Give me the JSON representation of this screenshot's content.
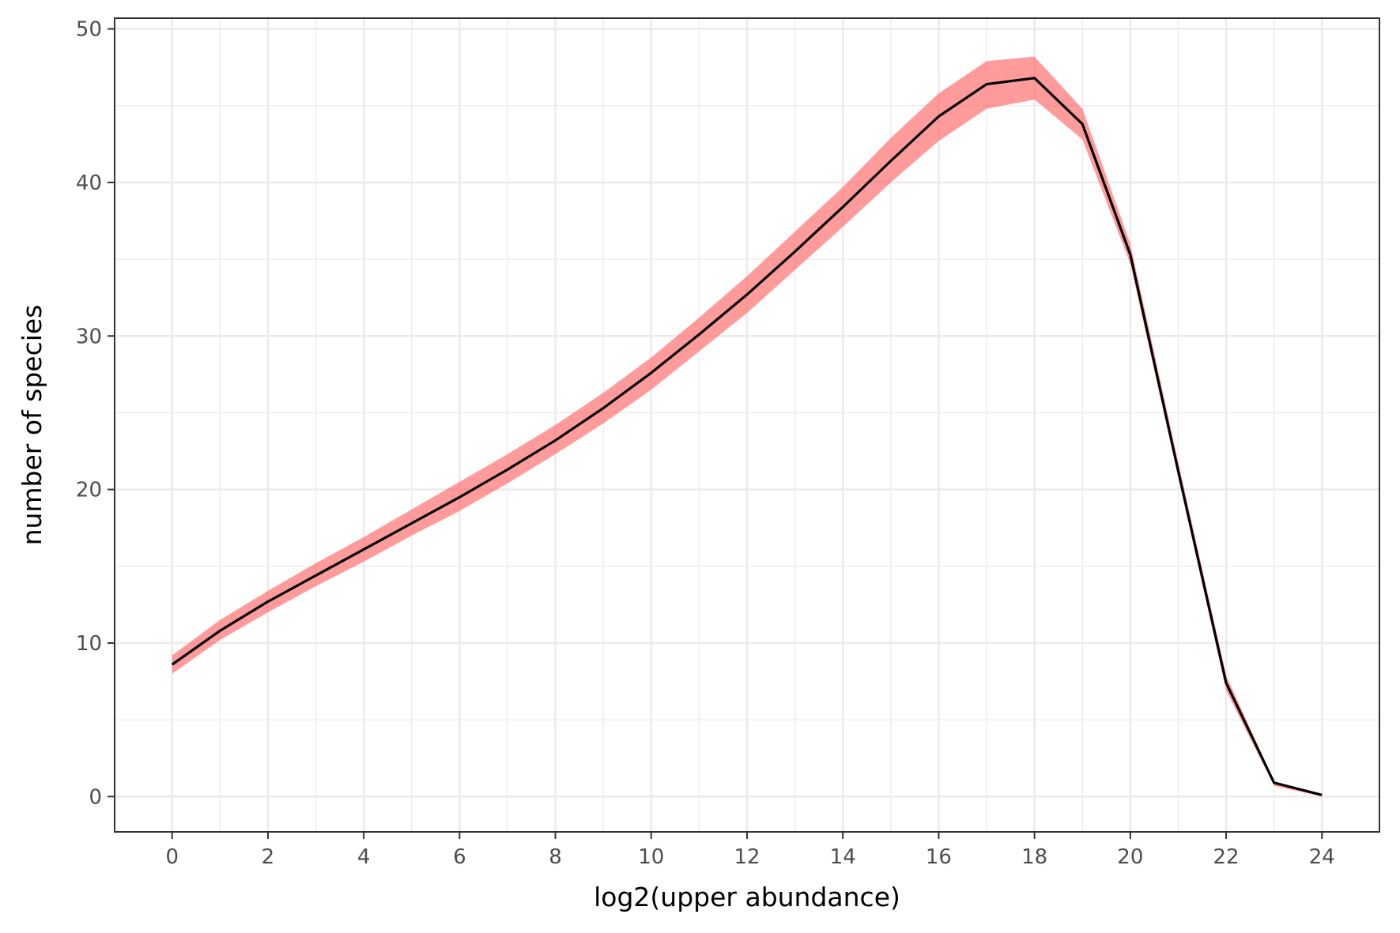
{
  "chart_data": {
    "type": "line",
    "title": "",
    "xlabel": "log2(upper abundance)",
    "ylabel": "number of species",
    "xlim": [
      -1.2,
      25.2
    ],
    "ylim": [
      -2.3,
      50.7
    ],
    "x_ticks": [
      0,
      2,
      4,
      6,
      8,
      10,
      12,
      14,
      16,
      18,
      20,
      22,
      24
    ],
    "x_tick_labels": [
      "0",
      "2",
      "4",
      "6",
      "8",
      "10",
      "12",
      "14",
      "16",
      "18",
      "20",
      "22",
      "24"
    ],
    "y_ticks": [
      0,
      10,
      20,
      30,
      40,
      50
    ],
    "y_tick_labels": [
      "0",
      "10",
      "20",
      "30",
      "40",
      "50"
    ],
    "grid": true,
    "legend": "none",
    "series": [
      {
        "x": [
          0,
          1,
          2,
          3,
          4,
          5,
          6,
          7,
          8,
          9,
          10,
          11,
          12,
          13,
          14,
          15,
          16,
          17,
          18,
          19,
          20,
          21,
          22,
          23,
          24
        ],
        "values": [
          8.6,
          10.8,
          12.7,
          14.4,
          16.1,
          17.8,
          19.5,
          21.3,
          23.2,
          25.3,
          27.6,
          30.1,
          32.7,
          35.5,
          38.4,
          41.4,
          44.3,
          46.4,
          46.8,
          43.8,
          35.3,
          21.2,
          7.4,
          0.9,
          0.1
        ],
        "lower": [
          8.0,
          10.2,
          12.0,
          13.7,
          15.3,
          17.0,
          18.6,
          20.4,
          22.3,
          24.3,
          26.5,
          29.0,
          31.5,
          34.3,
          37.1,
          40.0,
          42.7,
          44.8,
          45.4,
          42.8,
          34.7,
          20.8,
          6.9,
          0.7,
          0.0
        ],
        "upper": [
          9.2,
          11.5,
          13.4,
          15.2,
          16.9,
          18.7,
          20.5,
          22.3,
          24.2,
          26.3,
          28.6,
          31.2,
          33.9,
          36.8,
          39.7,
          42.9,
          45.8,
          47.9,
          48.2,
          44.8,
          36.0,
          21.8,
          7.9,
          1.0,
          0.1
        ],
        "line_color": "#000000",
        "ribbon_color": "#ff6666",
        "ribbon_opacity": 0.65
      }
    ]
  }
}
